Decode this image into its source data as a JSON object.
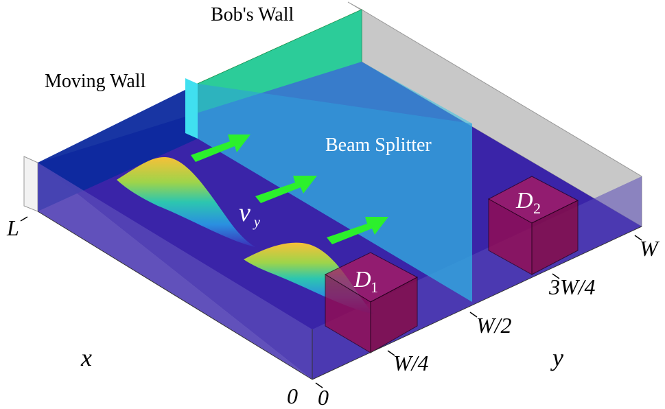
{
  "labels": {
    "bobs_wall": "Bob's Wall",
    "moving_wall": "Moving Wall",
    "beam_splitter": "Beam Splitter",
    "velocity_main": "v",
    "velocity_sub": "y"
  },
  "detectors": [
    {
      "main": "D",
      "sub": "1"
    },
    {
      "main": "D",
      "sub": "2"
    }
  ],
  "axes": {
    "x_name": "x",
    "y_name": "y",
    "x_ticks": [
      "0",
      "L"
    ],
    "y_ticks": [
      "0",
      "W/4",
      "W/2",
      "3W/4",
      "W"
    ]
  },
  "colors": {
    "floor": "#3a24a8",
    "moving_wall": "#0c2a9e",
    "bobs_wall": "#1fd63a",
    "far_wall": "#c8c8c8",
    "beam_splitter": "#36c4e8",
    "arrow": "#2cf02c",
    "detector": "#9c0a4a"
  }
}
